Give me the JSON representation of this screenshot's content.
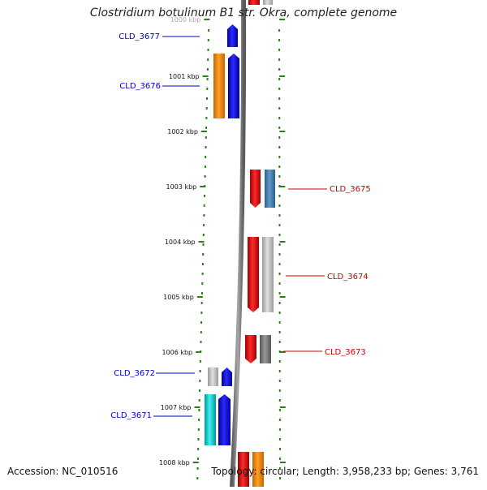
{
  "title": "Clostridium botulinum B1 str. Okra, complete genome",
  "footer": {
    "accession": "Accession: NC_010516",
    "summary": "Topology: circular; Length: 3,958,233 bp; Genes: 3,761"
  },
  "ticks": [
    {
      "label": "1000 kbp"
    },
    {
      "label": "1001 kbp"
    },
    {
      "label": "1002 kbp"
    },
    {
      "label": "1003 kbp"
    },
    {
      "label": "1004 kbp"
    },
    {
      "label": "1005 kbp"
    },
    {
      "label": "1006 kbp"
    },
    {
      "label": "1007 kbp"
    },
    {
      "label": "1008 kbp"
    }
  ],
  "gene_labels": [
    {
      "text": "CLD_3677",
      "color": "#0000cc",
      "side": "left"
    },
    {
      "text": "CLD_3676",
      "color": "#0000cc",
      "side": "left"
    },
    {
      "text": "CLD_3675",
      "color": "#cc0000",
      "side": "right"
    },
    {
      "text": "CLD_3674",
      "color": "#cc0000",
      "side": "right"
    },
    {
      "text": "CLD_3673",
      "color": "#cc0000",
      "side": "right"
    },
    {
      "text": "CLD_3672",
      "color": "#0000cc",
      "side": "left"
    },
    {
      "text": "CLD_3671",
      "color": "#0000cc",
      "side": "left"
    }
  ],
  "colors": {
    "backbone": "#808080",
    "dots": "#2e7d1e",
    "blue": "#0000ee",
    "red": "#ee0000",
    "orange": "#ff8c00",
    "steel": "#4682b4",
    "gray": "#bdbdbd",
    "darkgray": "#777777",
    "cyan": "#00c8c8"
  }
}
